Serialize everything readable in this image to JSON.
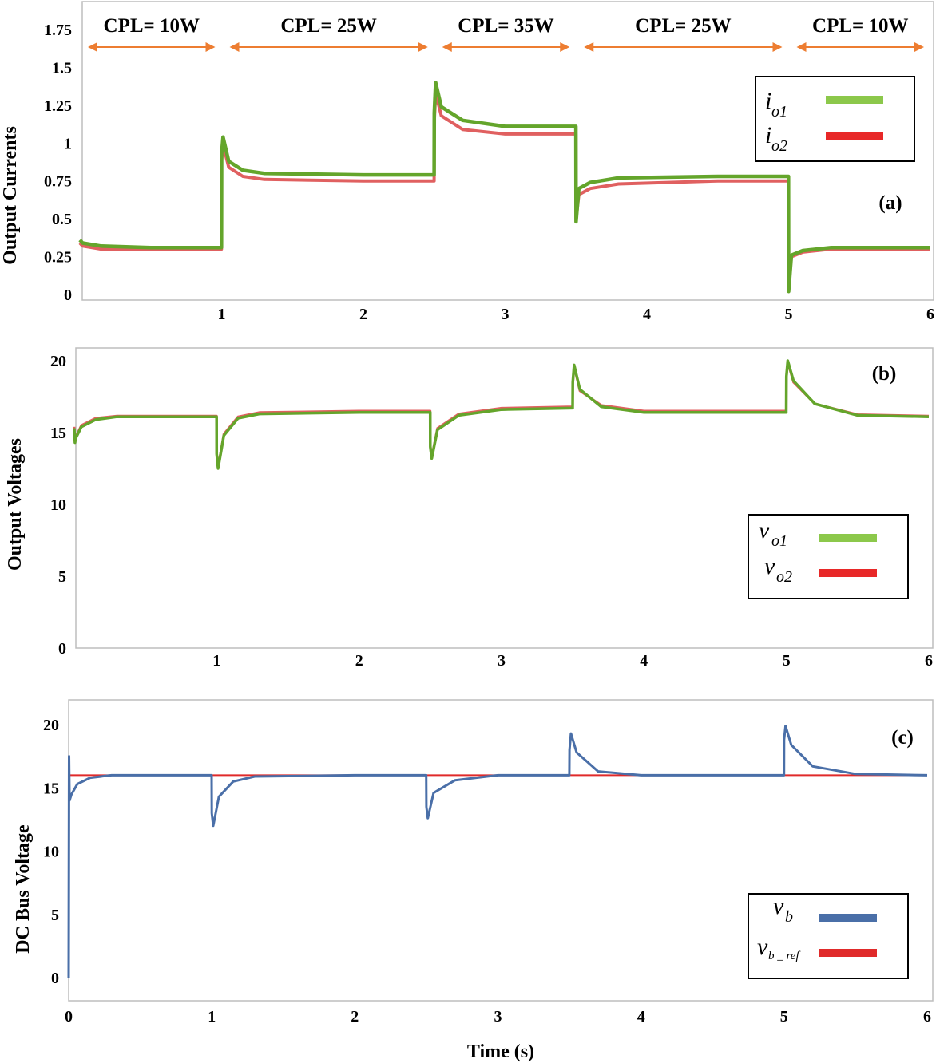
{
  "colors": {
    "io1": "#64a52b",
    "io1_legend": "#8cc84b",
    "io2": "#e06060",
    "io2_legend": "#e82828",
    "vb": "#4a6fa8",
    "vb_ref": "#e02a2a",
    "arrow": "#ed7d31"
  },
  "x_axis": {
    "label": "Time (s)",
    "ticks_a": [
      "1",
      "2",
      "3",
      "4",
      "5",
      "6"
    ],
    "ticks_b": [
      "1",
      "2",
      "3",
      "4",
      "5",
      "6"
    ],
    "ticks_c": [
      "0",
      "1",
      "2",
      "3",
      "4",
      "5",
      "6"
    ]
  },
  "segments": [
    {
      "label": "CPL= 10W",
      "start": 0,
      "end": 1
    },
    {
      "label": "CPL= 25W",
      "start": 1,
      "end": 2.5
    },
    {
      "label": "CPL= 35W",
      "start": 2.5,
      "end": 3.5
    },
    {
      "label": "CPL= 25W",
      "start": 3.5,
      "end": 5
    },
    {
      "label": "CPL= 10W",
      "start": 5,
      "end": 6
    }
  ],
  "chart_data": [
    {
      "type": "line",
      "panel": "(a)",
      "ylabel": "Output Currents",
      "xlim": [
        0,
        6
      ],
      "ylim": [
        0,
        1.9
      ],
      "yticks": [
        "0",
        "0.25",
        "0.5",
        "0.75",
        "1",
        "1.25",
        "1.5",
        "1.75"
      ],
      "legend_position": "top-right",
      "legend": [
        {
          "symbol": "i",
          "sub": "o1",
          "color_key": "io1_legend"
        },
        {
          "symbol": "i",
          "sub": "o2",
          "color_key": "io2_legend"
        }
      ],
      "series": [
        {
          "name": "io1",
          "x": [
            0,
            0.02,
            0.15,
            0.5,
            0.999,
            1.0,
            1.01,
            1.05,
            1.15,
            1.3,
            2.0,
            2.499,
            2.5,
            2.51,
            2.55,
            2.7,
            3.0,
            3.499,
            3.5,
            3.52,
            3.6,
            3.8,
            4.5,
            4.999,
            5.0,
            5.02,
            5.1,
            5.3,
            6.0
          ],
          "y": [
            0.36,
            0.34,
            0.32,
            0.31,
            0.31,
            0.93,
            1.04,
            0.88,
            0.82,
            0.8,
            0.79,
            0.79,
            1.2,
            1.4,
            1.24,
            1.15,
            1.11,
            1.11,
            0.48,
            0.7,
            0.74,
            0.77,
            0.78,
            0.78,
            0.02,
            0.26,
            0.29,
            0.31,
            0.31
          ]
        },
        {
          "name": "io2",
          "x": [
            0,
            0.02,
            0.15,
            0.5,
            0.999,
            1.0,
            1.01,
            1.05,
            1.15,
            1.3,
            2.0,
            2.499,
            2.5,
            2.51,
            2.55,
            2.7,
            3.0,
            3.499,
            3.5,
            3.52,
            3.6,
            3.8,
            4.5,
            4.999,
            5.0,
            5.02,
            5.1,
            5.3,
            6.0
          ],
          "y": [
            0.34,
            0.32,
            0.3,
            0.3,
            0.3,
            0.89,
            0.99,
            0.84,
            0.78,
            0.76,
            0.75,
            0.75,
            1.15,
            1.33,
            1.18,
            1.09,
            1.06,
            1.06,
            0.5,
            0.66,
            0.7,
            0.73,
            0.75,
            0.75,
            0.05,
            0.25,
            0.28,
            0.3,
            0.3
          ]
        }
      ]
    },
    {
      "type": "line",
      "panel": "(b)",
      "ylabel": "Output Voltages",
      "xlim": [
        0,
        6
      ],
      "ylim": [
        0,
        21
      ],
      "yticks": [
        "0",
        "5",
        "10",
        "15",
        "20"
      ],
      "legend_position": "right",
      "legend": [
        {
          "symbol": "v",
          "sub": "o1",
          "color_key": "io1_legend"
        },
        {
          "symbol": "v",
          "sub": "o2",
          "color_key": "io2_legend"
        }
      ],
      "series": [
        {
          "name": "vo1",
          "x": [
            0,
            0.005,
            0.01,
            0.05,
            0.15,
            0.3,
            0.999,
            1.0,
            1.01,
            1.05,
            1.15,
            1.3,
            2.0,
            2.499,
            2.5,
            2.51,
            2.55,
            2.7,
            3.0,
            3.499,
            3.5,
            3.51,
            3.55,
            3.7,
            4.0,
            4.999,
            5.0,
            5.01,
            5.05,
            5.2,
            5.5,
            6.0
          ],
          "y": [
            15.3,
            14.3,
            14.6,
            15.4,
            15.9,
            16.1,
            16.1,
            13.5,
            12.5,
            14.8,
            16.0,
            16.3,
            16.4,
            16.4,
            14.0,
            13.2,
            15.2,
            16.2,
            16.6,
            16.7,
            18.5,
            19.7,
            18.0,
            16.8,
            16.4,
            16.4,
            18.9,
            20.0,
            18.6,
            17.0,
            16.2,
            16.1
          ]
        },
        {
          "name": "vo2",
          "x": [
            0,
            0.005,
            0.01,
            0.05,
            0.15,
            0.3,
            0.999,
            1.0,
            1.01,
            1.05,
            1.15,
            1.3,
            2.0,
            2.499,
            2.5,
            2.51,
            2.55,
            2.7,
            3.0,
            3.499,
            3.5,
            3.51,
            3.55,
            3.7,
            4.0,
            4.999,
            5.0,
            5.01,
            5.05,
            5.2,
            5.5,
            6.0
          ],
          "y": [
            15.4,
            14.4,
            14.7,
            15.5,
            16.0,
            16.15,
            16.15,
            13.6,
            12.6,
            14.9,
            16.1,
            16.4,
            16.5,
            16.5,
            14.1,
            13.3,
            15.3,
            16.3,
            16.7,
            16.8,
            18.4,
            19.6,
            17.9,
            16.9,
            16.5,
            16.5,
            18.8,
            19.9,
            18.5,
            17.0,
            16.25,
            16.15
          ]
        }
      ]
    },
    {
      "type": "line",
      "panel": "(c)",
      "ylabel": "DC Bus Voltage",
      "xlabel": "Time (s)",
      "xlim": [
        0,
        6
      ],
      "ylim": [
        -0.5,
        22
      ],
      "yticks": [
        "0",
        "5",
        "10",
        "15",
        "20"
      ],
      "legend_position": "bottom-right",
      "legend": [
        {
          "symbol": "v",
          "sub": "b",
          "color_key": "vb"
        },
        {
          "symbol": "v",
          "sub": "b _ ref",
          "color_key": "vb_ref"
        }
      ],
      "series": [
        {
          "name": "vb",
          "x": [
            0,
            0.003,
            0.006,
            0.02,
            0.06,
            0.15,
            0.3,
            0.999,
            1.0,
            1.01,
            1.05,
            1.15,
            1.3,
            2.0,
            2.499,
            2.5,
            2.51,
            2.55,
            2.7,
            3.0,
            3.499,
            3.5,
            3.51,
            3.55,
            3.7,
            4.0,
            4.999,
            5.0,
            5.01,
            5.05,
            5.2,
            5.5,
            6.0
          ],
          "y": [
            0,
            17.5,
            14.0,
            14.5,
            15.3,
            15.8,
            16.0,
            16.0,
            13.0,
            12.0,
            14.3,
            15.5,
            15.9,
            16.0,
            16.0,
            13.5,
            12.6,
            14.6,
            15.6,
            16.0,
            16.0,
            18.0,
            19.3,
            17.8,
            16.3,
            16.0,
            16.0,
            18.8,
            19.9,
            18.4,
            16.7,
            16.1,
            16.0
          ]
        },
        {
          "name": "vb_ref",
          "x": [
            0,
            6
          ],
          "y": [
            16,
            16
          ]
        }
      ]
    }
  ]
}
